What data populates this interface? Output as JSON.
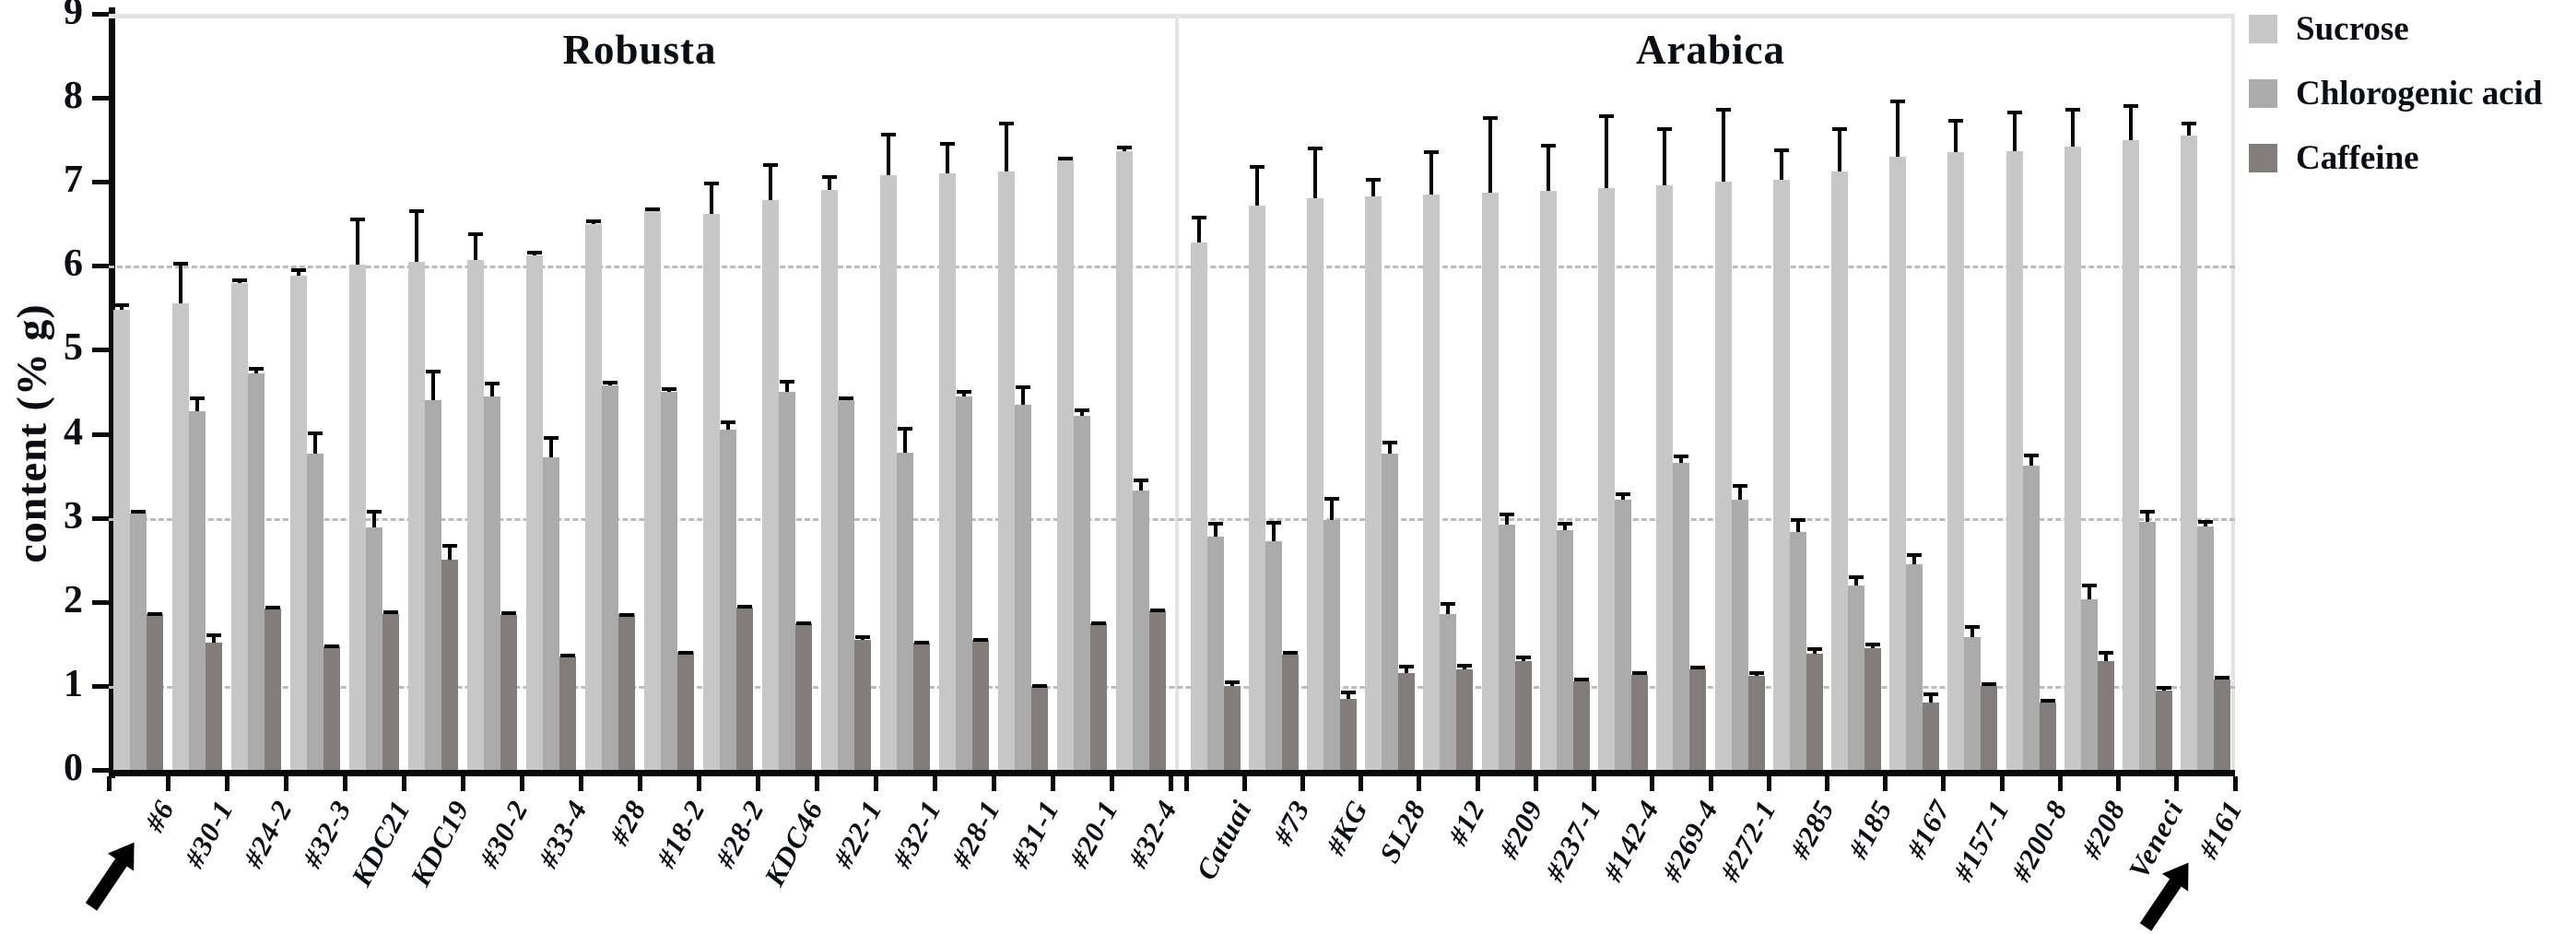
{
  "chart_data": {
    "type": "bar",
    "title": "",
    "ylabel": "content (% g)",
    "ylim": [
      0,
      9
    ],
    "yticks": [
      0,
      1,
      2,
      3,
      4,
      5,
      6,
      7,
      8,
      9
    ],
    "gridlines": [
      1,
      3,
      6
    ],
    "grid_style": "dashed",
    "legend_position": "top-right",
    "legend": [
      {
        "label": "Sucrose",
        "color": "#c7c7c7"
      },
      {
        "label": "Chlorogenic acid",
        "color": "#ababab"
      },
      {
        "label": "Caffeine",
        "color": "#827c7a"
      }
    ],
    "panels": [
      {
        "title": "Robusta",
        "arrow_at": "#6",
        "categories": [
          "#6",
          "#30-1",
          "#24-2",
          "#32-3",
          "KDC21",
          "KDC19",
          "#30-2",
          "#33-4",
          "#28",
          "#18-2",
          "#28-2",
          "KDC46",
          "#22-1",
          "#32-1",
          "#28-1",
          "#31-1",
          "#20-1",
          "#32-4"
        ],
        "series": [
          {
            "name": "Sucrose",
            "values": [
              5.48,
              5.55,
              5.8,
              5.88,
              6.02,
              6.05,
              6.07,
              6.12,
              6.5,
              6.65,
              6.62,
              6.78,
              6.9,
              7.08,
              7.1,
              7.12,
              7.25,
              7.37
            ],
            "errors": [
              0.07,
              0.5,
              0.05,
              0.09,
              0.56,
              0.62,
              0.33,
              0.06,
              0.05,
              0.05,
              0.38,
              0.44,
              0.18,
              0.5,
              0.38,
              0.6,
              0.05,
              0.06
            ]
          },
          {
            "name": "Chlorogenic acid",
            "values": [
              3.05,
              4.27,
              4.72,
              3.77,
              2.89,
              4.4,
              4.45,
              3.72,
              4.58,
              4.5,
              4.05,
              4.5,
              4.4,
              3.78,
              4.45,
              4.35,
              4.22,
              3.33
            ],
            "errors": [
              0.05,
              0.18,
              0.08,
              0.26,
              0.2,
              0.36,
              0.17,
              0.25,
              0.05,
              0.05,
              0.11,
              0.14,
              0.05,
              0.3,
              0.07,
              0.23,
              0.08,
              0.14
            ]
          },
          {
            "name": "Caffeine",
            "values": [
              1.85,
              1.52,
              1.92,
              1.47,
              1.86,
              2.5,
              1.84,
              1.35,
              1.85,
              1.4,
              1.93,
              1.75,
              1.55,
              1.52,
              1.55,
              1.0,
              1.75,
              1.9
            ],
            "errors": [
              0.03,
              0.11,
              0.03,
              0.02,
              0.04,
              0.19,
              0.05,
              0.03,
              0.02,
              0.02,
              0.04,
              0.02,
              0.05,
              0.02,
              0.02,
              0.02,
              0.02,
              0.02
            ]
          }
        ]
      },
      {
        "title": "Arabica",
        "arrow_at": "#161",
        "categories": [
          "Catuai",
          "#73",
          "#KG",
          "SL28",
          "#12",
          "#209",
          "#237-1",
          "#142-4",
          "#269-4",
          "#272-1",
          "#285",
          "#185",
          "#167",
          "#157-1",
          "#200-8",
          "#208",
          "Veneci",
          "#161"
        ],
        "series": [
          {
            "name": "Sucrose",
            "values": [
              6.28,
              6.72,
              6.8,
              6.83,
              6.85,
              6.87,
              6.89,
              6.93,
              6.96,
              7.0,
              7.03,
              7.12,
              7.3,
              7.35,
              7.36,
              7.42,
              7.5,
              7.55
            ],
            "errors": [
              0.32,
              0.48,
              0.62,
              0.22,
              0.53,
              0.91,
              0.56,
              0.87,
              0.69,
              0.88,
              0.37,
              0.53,
              0.68,
              0.4,
              0.49,
              0.46,
              0.42,
              0.17
            ]
          },
          {
            "name": "Chlorogenic acid",
            "values": [
              2.78,
              2.72,
              2.98,
              3.77,
              1.85,
              2.92,
              2.85,
              3.22,
              3.66,
              3.22,
              2.83,
              2.2,
              2.45,
              1.58,
              3.62,
              2.03,
              2.95,
              2.9
            ],
            "errors": [
              0.17,
              0.24,
              0.27,
              0.15,
              0.15,
              0.14,
              0.1,
              0.08,
              0.09,
              0.18,
              0.17,
              0.12,
              0.13,
              0.14,
              0.15,
              0.19,
              0.15,
              0.08
            ]
          },
          {
            "name": "Caffeine",
            "values": [
              1.0,
              1.37,
              0.85,
              1.15,
              1.2,
              1.3,
              1.05,
              1.13,
              1.2,
              1.12,
              1.38,
              1.45,
              0.8,
              1.0,
              0.8,
              1.3,
              0.94,
              1.08
            ],
            "errors": [
              0.07,
              0.05,
              0.09,
              0.1,
              0.06,
              0.06,
              0.05,
              0.04,
              0.04,
              0.06,
              0.08,
              0.07,
              0.12,
              0.04,
              0.04,
              0.12,
              0.06,
              0.04
            ]
          }
        ]
      }
    ]
  }
}
